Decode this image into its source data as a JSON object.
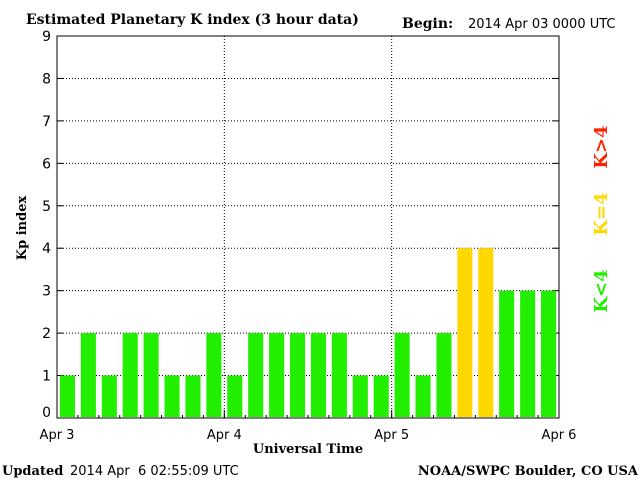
{
  "header": {
    "title": "Estimated Planetary K index (3 hour data)",
    "begin_label": "Begin:",
    "begin_value": "2014 Apr 03 0000 UTC"
  },
  "footer": {
    "updated_label": "Updated",
    "updated_value": "2014 Apr  6 02:55:09 UTC",
    "source": "NOAA/SWPC Boulder, CO USA"
  },
  "legend": {
    "above": {
      "text": "K>4",
      "color": "#ff2200"
    },
    "equal": {
      "text": "K=4",
      "color": "#ffd800"
    },
    "below": {
      "text": "K<4",
      "color": "#22ee00"
    }
  },
  "chart_data": {
    "type": "bar",
    "title": "Estimated Planetary K index (3 hour data)",
    "xlabel": "Universal Time",
    "ylabel": "Kp index",
    "ylim": [
      0,
      9
    ],
    "yticks": [
      "0",
      "1",
      "2",
      "3",
      "4",
      "5",
      "6",
      "7",
      "8",
      "9"
    ],
    "xticks": [
      "Apr 3",
      "Apr 4",
      "Apr 5",
      "Apr 6"
    ],
    "interval_hours": 3,
    "grid": true,
    "legend_placement": "right",
    "values": [
      1,
      2,
      1,
      2,
      2,
      1,
      1,
      2,
      1,
      2,
      2,
      2,
      2,
      2,
      1,
      1,
      2,
      1,
      2,
      4,
      4,
      3,
      3,
      3
    ],
    "colors": {
      "below4": "#22ee00",
      "equal4": "#ffd800",
      "above4": "#ff2200"
    }
  }
}
